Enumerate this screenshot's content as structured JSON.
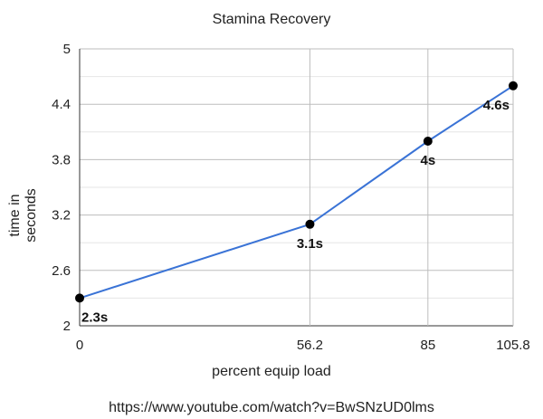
{
  "chart_data": {
    "type": "line",
    "title": "Stamina Recovery",
    "xlabel": "percent equip load",
    "ylabel": "time in\nseconds",
    "x": [
      0,
      56.2,
      85,
      105.8
    ],
    "x_tick_labels": [
      "0",
      "56.2",
      "85",
      "105.8"
    ],
    "series": [
      {
        "values": [
          2.3,
          3.1,
          4.0,
          4.6
        ],
        "data_labels": [
          "2.3s",
          "3.1s",
          "4s",
          "4.6s"
        ],
        "color": "#3a73d6",
        "marker_color": "#000000"
      }
    ],
    "ylim": [
      2,
      5
    ],
    "y_ticks": [
      2,
      2.6,
      3.2,
      3.8,
      4.4,
      5
    ],
    "y_tick_labels": [
      "2",
      "2.6",
      "3.2",
      "3.8",
      "4.4",
      "5"
    ],
    "grid": true,
    "legend": "none"
  },
  "footer": {
    "source_url": "https://www.youtube.com/watch?v=BwSNzUD0lms"
  }
}
